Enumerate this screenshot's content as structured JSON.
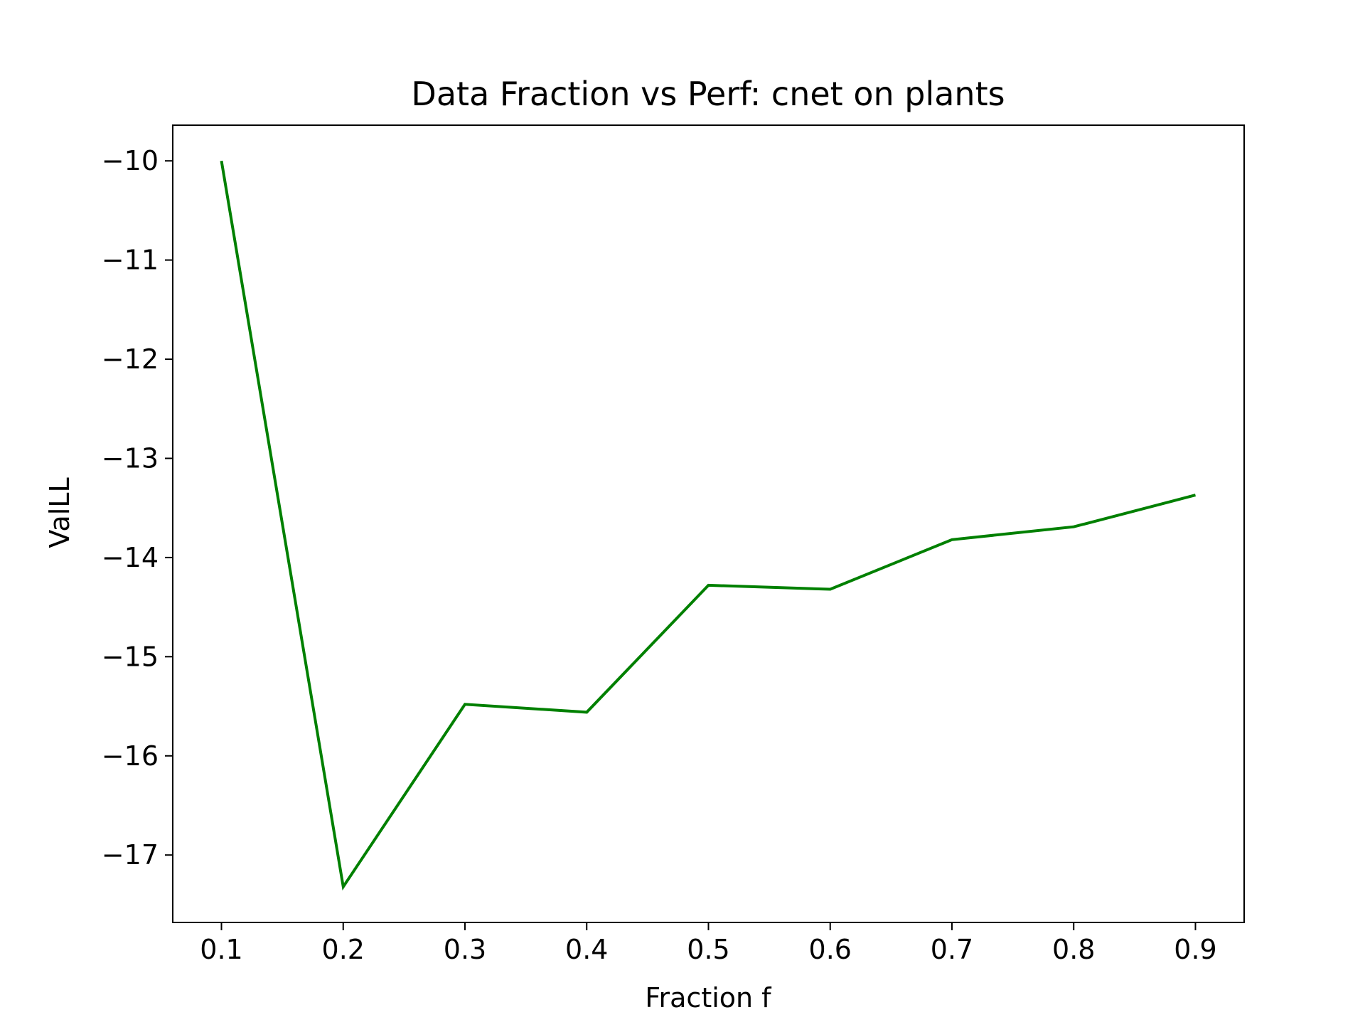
{
  "chart_data": {
    "type": "line",
    "title": "Data Fraction vs Perf: cnet on plants",
    "xlabel": "Fraction f",
    "ylabel": "ValLL",
    "x": [
      0.1,
      0.2,
      0.3,
      0.4,
      0.5,
      0.6,
      0.7,
      0.8,
      0.9
    ],
    "series": [
      {
        "values": [
          -10.0,
          -17.32,
          -15.48,
          -15.56,
          -14.28,
          -14.32,
          -13.82,
          -13.69,
          -13.37
        ],
        "color": "#008000"
      }
    ],
    "xlim": [
      0.06,
      0.94
    ],
    "ylim": [
      -17.68,
      -9.64
    ],
    "x_ticks": [
      0.1,
      0.2,
      0.3,
      0.4,
      0.5,
      0.6,
      0.7,
      0.8,
      0.9
    ],
    "x_tick_labels": [
      "0.1",
      "0.2",
      "0.3",
      "0.4",
      "0.5",
      "0.6",
      "0.7",
      "0.8",
      "0.9"
    ],
    "y_ticks": [
      -10,
      -11,
      -12,
      -13,
      -14,
      -15,
      -16,
      -17
    ],
    "y_tick_labels": [
      "−10",
      "−11",
      "−12",
      "−13",
      "−14",
      "−15",
      "−16",
      "−17"
    ],
    "grid": false,
    "legend": "none"
  }
}
